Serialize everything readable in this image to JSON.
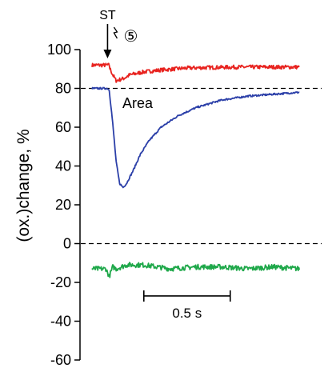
{
  "chart_data": {
    "type": "line",
    "ylabel": "(ox.)change, %",
    "ylim": [
      -60,
      100
    ],
    "y_ticks": [
      100,
      80,
      60,
      40,
      20,
      0,
      -20,
      -40,
      -60
    ],
    "y_tick_labels": [
      "100",
      "80",
      "60",
      "40",
      "20",
      "0",
      "-20",
      "-40",
      "-60"
    ],
    "x_unit": "s",
    "xlim": [
      0,
      1.25
    ],
    "reference_lines": [
      {
        "y": 80,
        "style": "dashed"
      },
      {
        "y": 0,
        "style": "dashed"
      }
    ],
    "series": [
      {
        "color": "#e8231f",
        "x": [
          0,
          0.1,
          0.1,
          0.12,
          0.14,
          0.18,
          0.22,
          0.3,
          0.4,
          0.55,
          0.7,
          0.85,
          1.0,
          1.2
        ],
        "values": [
          92,
          92,
          91,
          87,
          84,
          85,
          87,
          88.5,
          89.5,
          90.5,
          90.8,
          91,
          91,
          91
        ]
      },
      {
        "color": "#2b3fa8",
        "x": [
          0,
          0.09,
          0.1,
          0.12,
          0.14,
          0.16,
          0.18,
          0.2,
          0.24,
          0.28,
          0.33,
          0.4,
          0.5,
          0.6,
          0.75,
          0.9,
          1.05,
          1.2
        ],
        "values": [
          80,
          80,
          79,
          62,
          42,
          31,
          29,
          31,
          38,
          46,
          53,
          60,
          66,
          70,
          74,
          76,
          77,
          78
        ]
      },
      {
        "color": "#1fa84a",
        "x": [
          0,
          0.08,
          0.1,
          0.12,
          0.14,
          0.2,
          0.3,
          0.45,
          0.6,
          0.75,
          0.9,
          1.05,
          1.2
        ],
        "values": [
          -13,
          -13,
          -17,
          -12,
          -13,
          -11,
          -11,
          -13,
          -12,
          -12,
          -13,
          -12,
          -13
        ]
      }
    ],
    "annotations": {
      "stimulus_label": "ST",
      "stimulus_number": "⑤",
      "stimulus_x": 0.09,
      "area_label": "Area",
      "scale_bar": {
        "label": "0.5 s",
        "x_start": 0.3,
        "x_end": 0.8,
        "y": -27
      }
    },
    "grid": false,
    "legend": "none"
  }
}
